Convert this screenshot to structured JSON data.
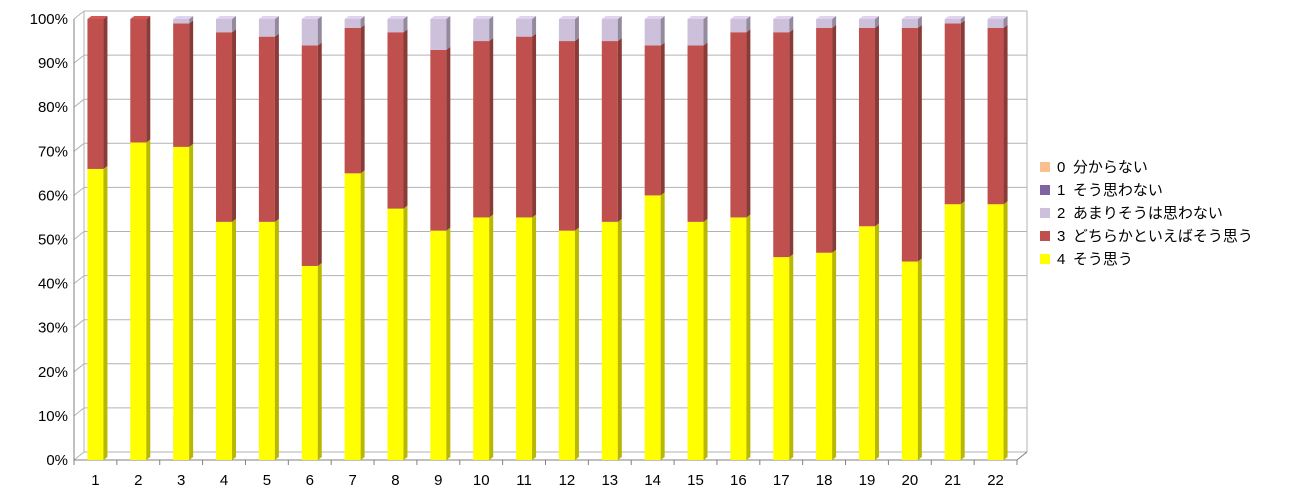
{
  "chart_data": {
    "type": "bar",
    "stacked": true,
    "percent": true,
    "title": "",
    "xlabel": "",
    "ylabel": "",
    "ylim": [
      0,
      100
    ],
    "y_ticks": [
      "0%",
      "10%",
      "20%",
      "30%",
      "40%",
      "50%",
      "60%",
      "70%",
      "80%",
      "90%",
      "100%"
    ],
    "grid": true,
    "legend_position": "right",
    "categories": [
      "1",
      "2",
      "3",
      "4",
      "5",
      "6",
      "7",
      "8",
      "9",
      "10",
      "11",
      "12",
      "13",
      "14",
      "15",
      "16",
      "17",
      "18",
      "19",
      "20",
      "21",
      "22"
    ],
    "series": [
      {
        "name": "4 そう思う",
        "color": "#ffff00",
        "values": [
          66,
          72,
          71,
          54,
          54,
          44,
          65,
          57,
          52,
          55,
          55,
          52,
          54,
          60,
          54,
          55,
          46,
          47,
          53,
          45,
          58,
          58
        ]
      },
      {
        "name": "3 どちらかといえばそう思う",
        "color": "#c0504d",
        "values": [
          34,
          28,
          28,
          43,
          42,
          50,
          33,
          40,
          41,
          40,
          41,
          43,
          41,
          34,
          40,
          42,
          51,
          51,
          45,
          53,
          41,
          40
        ]
      },
      {
        "name": "2 あまりそうは思わない",
        "color": "#ccc0da",
        "values": [
          0,
          0,
          1,
          3,
          4,
          6,
          2,
          3,
          7,
          5,
          4,
          5,
          5,
          6,
          6,
          3,
          3,
          2,
          2,
          2,
          1,
          2
        ]
      },
      {
        "name": "1 そう思わない",
        "color": "#8064a2",
        "values": [
          0,
          0,
          0,
          0,
          0,
          0,
          0,
          0,
          0,
          0,
          0,
          0,
          0,
          0,
          0,
          0,
          0,
          0,
          0,
          0,
          0,
          0
        ]
      },
      {
        "name": "0 分からない",
        "color": "#fac090",
        "values": [
          0,
          0,
          0,
          0,
          0,
          0,
          0,
          0,
          0,
          0,
          0,
          0,
          0,
          0,
          0,
          0,
          0,
          0,
          0,
          0,
          0,
          0
        ]
      }
    ],
    "legend_order": [
      "0 分からない",
      "1 そう思わない",
      "2 あまりそうは思わない",
      "3 どちらかといえばそう思う",
      "4 そう思う"
    ]
  }
}
